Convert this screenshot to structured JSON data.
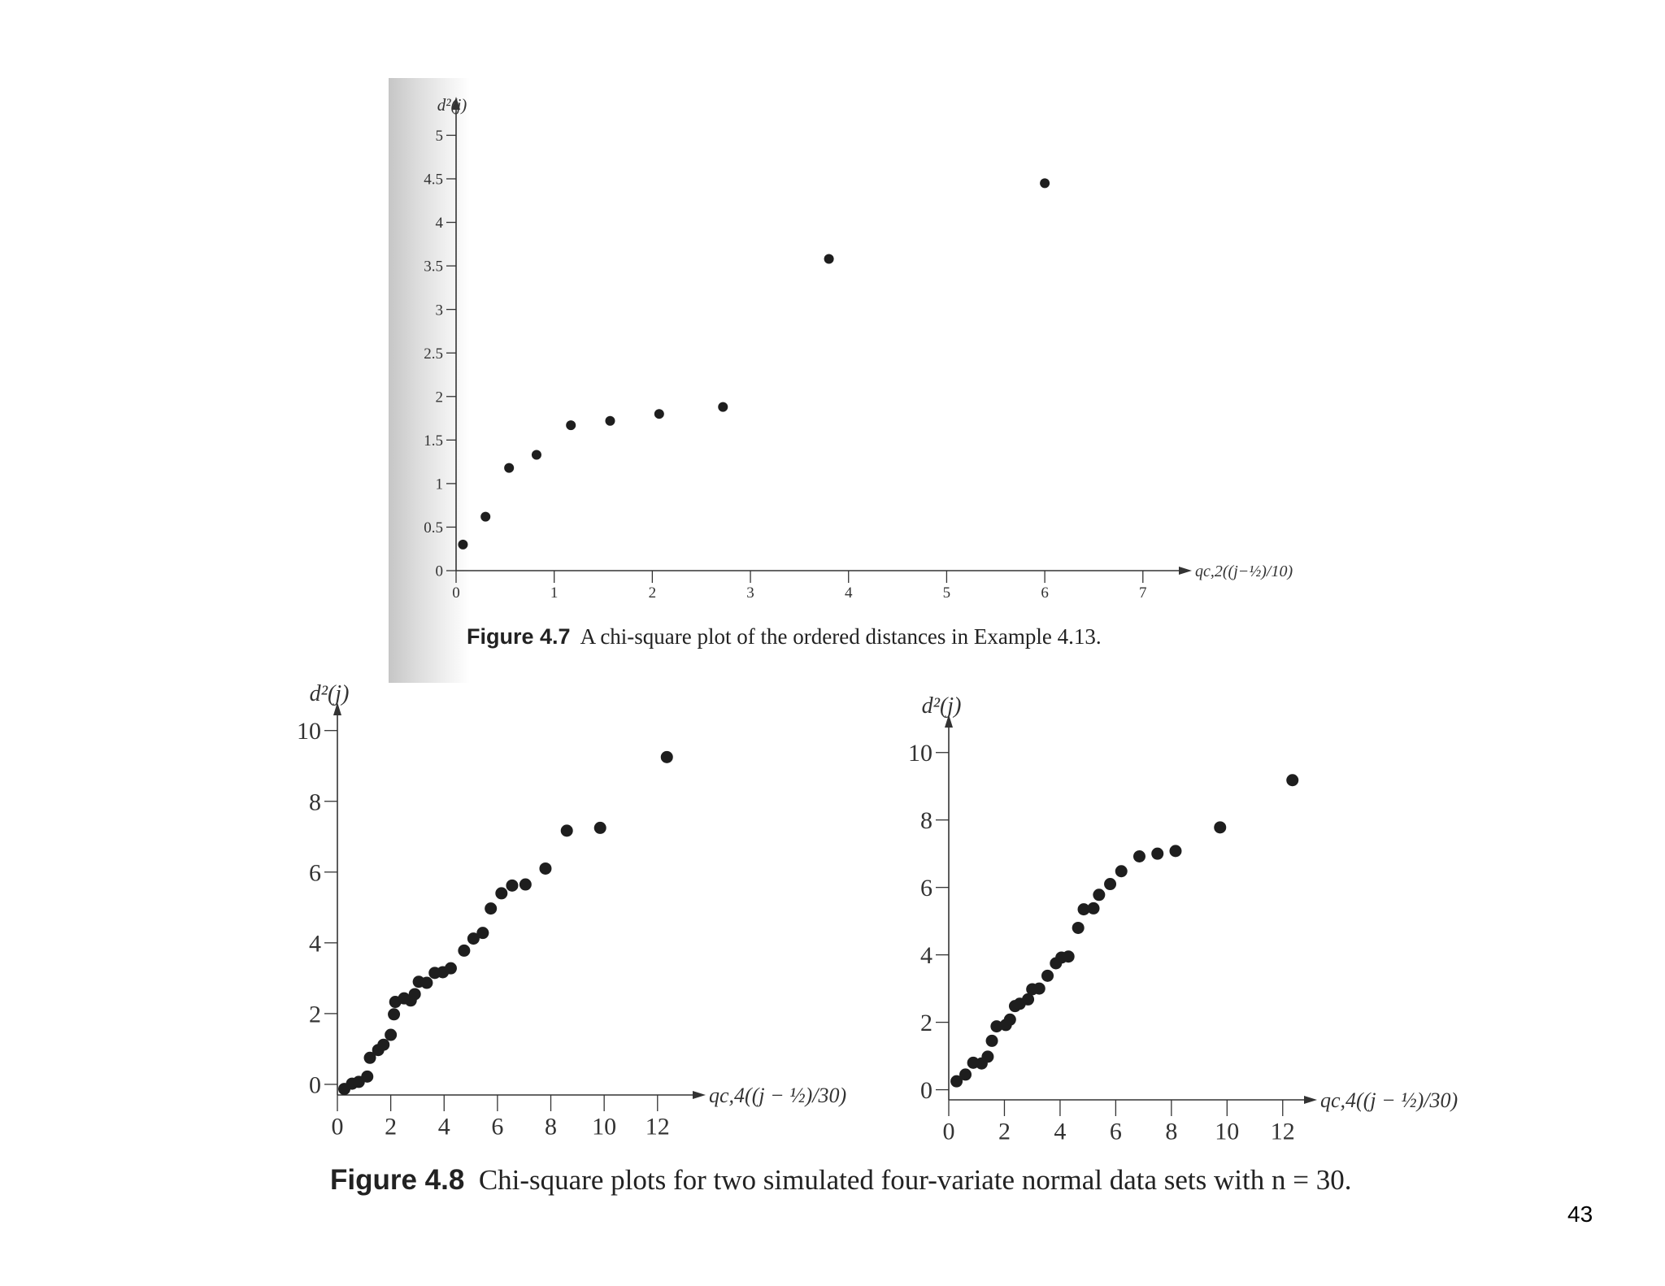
{
  "page_number": "43",
  "colors": {
    "point": "#1e1e1e",
    "axis": "#333333"
  },
  "chart_data": [
    {
      "type": "scatter",
      "ylabel": "d²(j)",
      "xlabel": "qc,2((j−½)/10)",
      "xlim": [
        0,
        7.3
      ],
      "ylim": [
        0,
        5.2
      ],
      "xticks": [
        0,
        1,
        2,
        3,
        4,
        5,
        6,
        7
      ],
      "yticks": [
        0,
        0.5,
        1,
        1.5,
        2,
        2.5,
        3,
        3.5,
        4,
        4.5,
        5
      ],
      "points": [
        [
          0.07,
          0.3
        ],
        [
          0.3,
          0.62
        ],
        [
          0.54,
          1.18
        ],
        [
          0.82,
          1.33
        ],
        [
          1.17,
          1.67
        ],
        [
          1.57,
          1.72
        ],
        [
          2.07,
          1.8
        ],
        [
          2.72,
          1.88
        ],
        [
          3.8,
          3.58
        ],
        [
          6.0,
          4.45
        ]
      ],
      "caption": {
        "label": "Figure 4.7",
        "text": "A chi-square plot of the ordered distances in Example 4.13."
      }
    },
    {
      "type": "scatter",
      "ylabel": "d²(j)",
      "xlabel": "qc,4((j − ½)/30)",
      "xlim": [
        0,
        13.5
      ],
      "ylim": [
        -0.3,
        10.2
      ],
      "xticks": [
        0,
        2,
        4,
        6,
        8,
        10,
        12
      ],
      "yticks": [
        0,
        2,
        4,
        6,
        8,
        10
      ],
      "points": [
        [
          0.26,
          -0.13
        ],
        [
          0.55,
          0.02
        ],
        [
          0.8,
          0.07
        ],
        [
          1.12,
          0.22
        ],
        [
          1.22,
          0.75
        ],
        [
          1.53,
          0.97
        ],
        [
          1.73,
          1.12
        ],
        [
          2.0,
          1.4
        ],
        [
          2.12,
          1.98
        ],
        [
          2.17,
          2.33
        ],
        [
          2.5,
          2.43
        ],
        [
          2.75,
          2.37
        ],
        [
          2.9,
          2.55
        ],
        [
          3.05,
          2.9
        ],
        [
          3.35,
          2.87
        ],
        [
          3.65,
          3.15
        ],
        [
          3.95,
          3.17
        ],
        [
          4.25,
          3.28
        ],
        [
          4.75,
          3.78
        ],
        [
          5.1,
          4.12
        ],
        [
          5.45,
          4.28
        ],
        [
          5.75,
          4.97
        ],
        [
          6.15,
          5.4
        ],
        [
          6.55,
          5.62
        ],
        [
          7.05,
          5.65
        ],
        [
          7.8,
          6.1
        ],
        [
          8.6,
          7.17
        ],
        [
          9.85,
          7.25
        ],
        [
          12.35,
          9.25
        ]
      ]
    },
    {
      "type": "scatter",
      "ylabel": "d²(j)",
      "xlabel": "qc,4((j − ½)/30)",
      "xlim": [
        0,
        13.0
      ],
      "ylim": [
        -0.3,
        10.5
      ],
      "xticks": [
        0,
        2,
        4,
        6,
        8,
        10,
        12
      ],
      "yticks": [
        0,
        2,
        4,
        6,
        8,
        10
      ],
      "points": [
        [
          0.28,
          0.25
        ],
        [
          0.6,
          0.45
        ],
        [
          0.88,
          0.8
        ],
        [
          1.18,
          0.78
        ],
        [
          1.4,
          0.98
        ],
        [
          1.55,
          1.45
        ],
        [
          1.72,
          1.88
        ],
        [
          2.05,
          1.92
        ],
        [
          2.2,
          2.08
        ],
        [
          2.38,
          2.48
        ],
        [
          2.55,
          2.55
        ],
        [
          2.85,
          2.68
        ],
        [
          3.0,
          2.98
        ],
        [
          3.25,
          3.0
        ],
        [
          3.55,
          3.38
        ],
        [
          3.85,
          3.75
        ],
        [
          4.05,
          3.92
        ],
        [
          4.3,
          3.95
        ],
        [
          4.65,
          4.8
        ],
        [
          4.85,
          5.35
        ],
        [
          5.2,
          5.38
        ],
        [
          5.4,
          5.78
        ],
        [
          5.8,
          6.1
        ],
        [
          6.2,
          6.48
        ],
        [
          6.85,
          6.92
        ],
        [
          7.5,
          7.0
        ],
        [
          8.15,
          7.08
        ],
        [
          9.75,
          7.78
        ],
        [
          12.35,
          9.18
        ]
      ],
      "caption": {
        "label": "Figure 4.8",
        "text": "Chi-square plots for two simulated four-variate normal data sets with n = 30."
      }
    }
  ]
}
